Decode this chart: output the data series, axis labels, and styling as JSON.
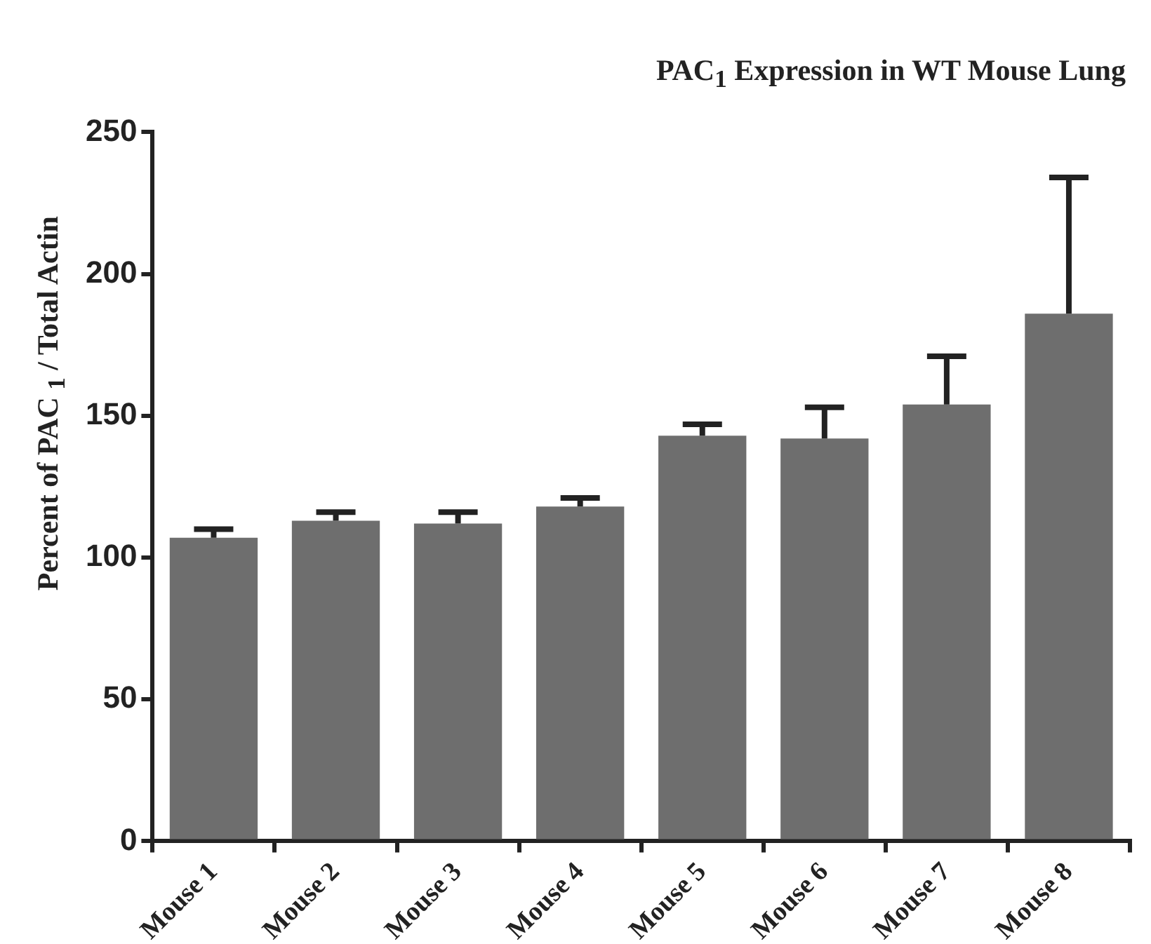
{
  "chart_data": {
    "type": "bar",
    "title": "PAC$_{1}$ Expression in WT Mouse Lung",
    "ylabel": "Percent of PAC $_{1}$ / Total Actin",
    "categories": [
      "Mouse 1",
      "Mouse 2",
      "Mouse 3",
      "Mouse 4",
      "Mouse 5",
      "Mouse 6",
      "Mouse 7",
      "Mouse 8"
    ],
    "values": [
      107,
      113,
      112,
      118,
      143,
      142,
      154,
      186
    ],
    "errors": [
      [
        107,
        110
      ],
      [
        113,
        116
      ],
      [
        112,
        116
      ],
      [
        118,
        121
      ],
      [
        143,
        147
      ],
      [
        142,
        153
      ],
      [
        154,
        171
      ],
      [
        186,
        234
      ]
    ],
    "color": "#6e6e6e",
    "ylim": [
      0,
      250
    ],
    "yticks": [
      0,
      50,
      100,
      150,
      200,
      250
    ]
  }
}
